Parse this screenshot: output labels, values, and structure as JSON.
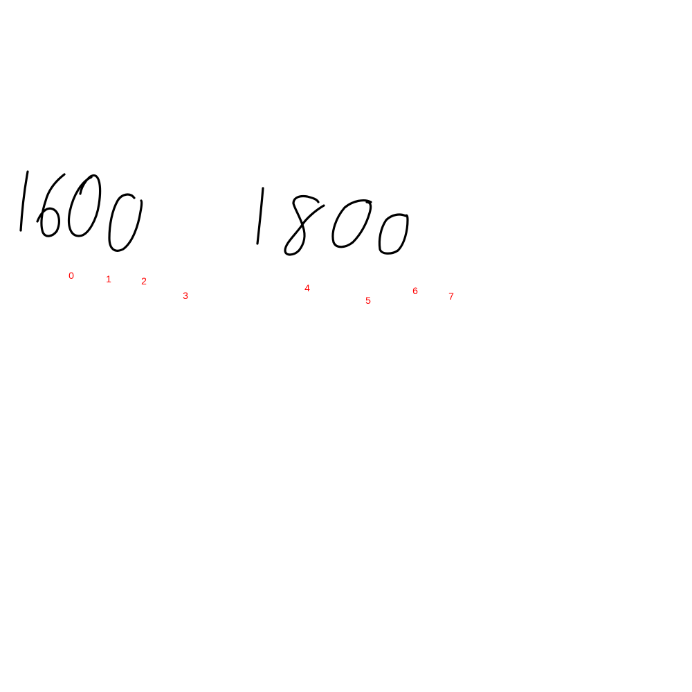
{
  "handwriting": {
    "numbers": [
      "1600",
      "1800"
    ],
    "ink_color": "#000000"
  },
  "markers": {
    "color": "#ff0000",
    "labels": [
      "0",
      "1",
      "2",
      "3",
      "4",
      "5",
      "6",
      "7"
    ]
  }
}
